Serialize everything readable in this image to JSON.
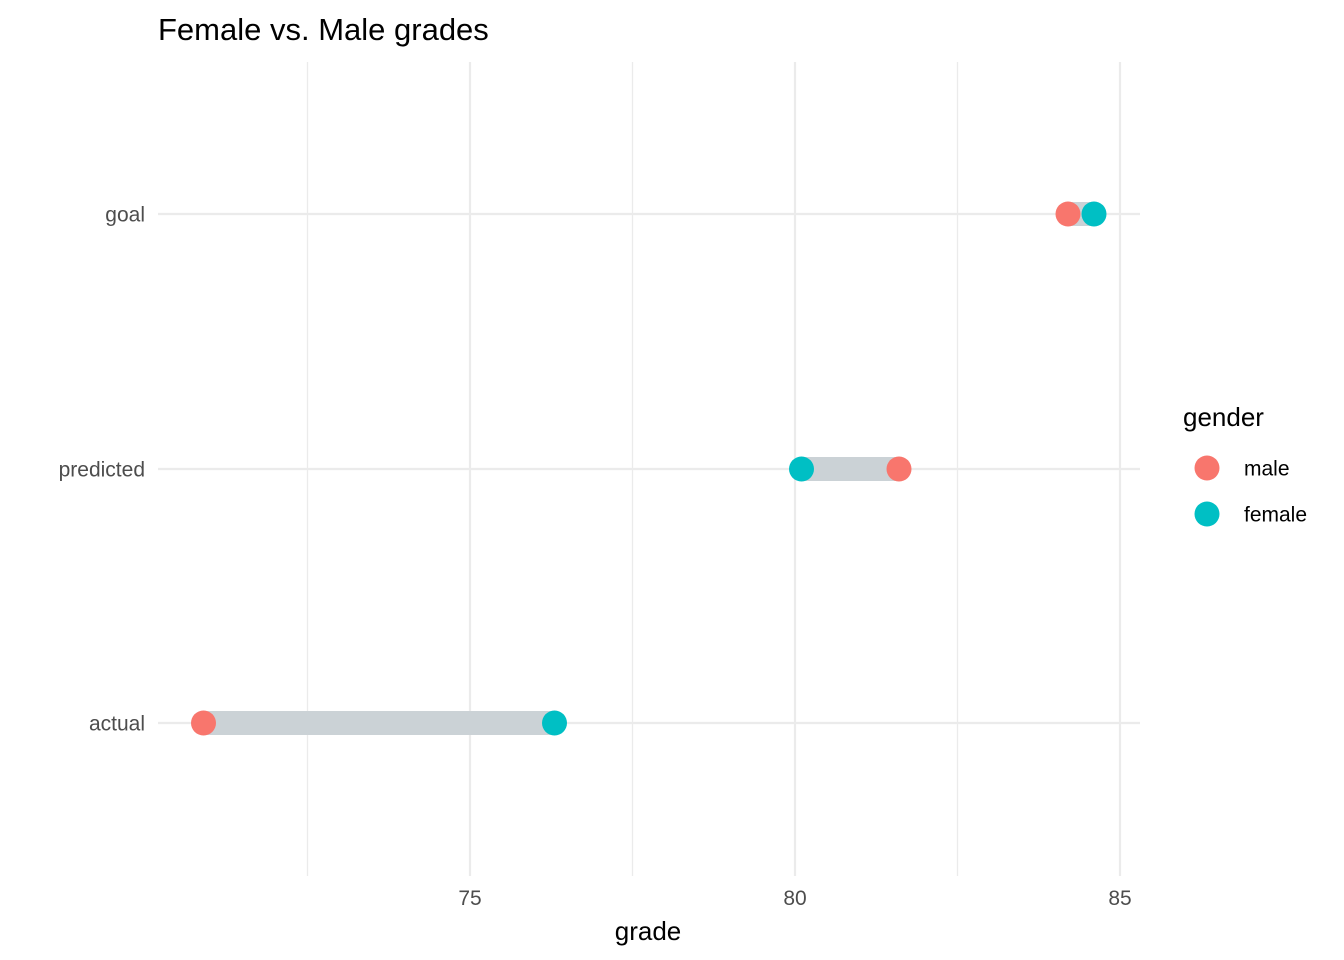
{
  "chart_data": {
    "type": "dumbbell",
    "title": "Female vs. Male grades",
    "xlabel": "grade",
    "ylabel": "",
    "xlim": [
      70.2,
      85.3
    ],
    "x_ticks": [
      75,
      80,
      85
    ],
    "x_tick_labels": [
      "75",
      "80",
      "85"
    ],
    "x_minor_ticks": [
      72.5,
      77.5,
      82.5
    ],
    "categories": [
      "goal",
      "predicted",
      "actual"
    ],
    "series": [
      {
        "name": "male",
        "color": "#F8766D",
        "values": [
          84.2,
          81.6,
          70.9
        ]
      },
      {
        "name": "female",
        "color": "#00BFC4",
        "values": [
          84.6,
          80.1,
          76.3
        ]
      }
    ],
    "segment_color": "#CBD2D6",
    "grid": true,
    "legend": {
      "title": "gender",
      "position": "right",
      "entries": [
        "male",
        "female"
      ]
    }
  }
}
